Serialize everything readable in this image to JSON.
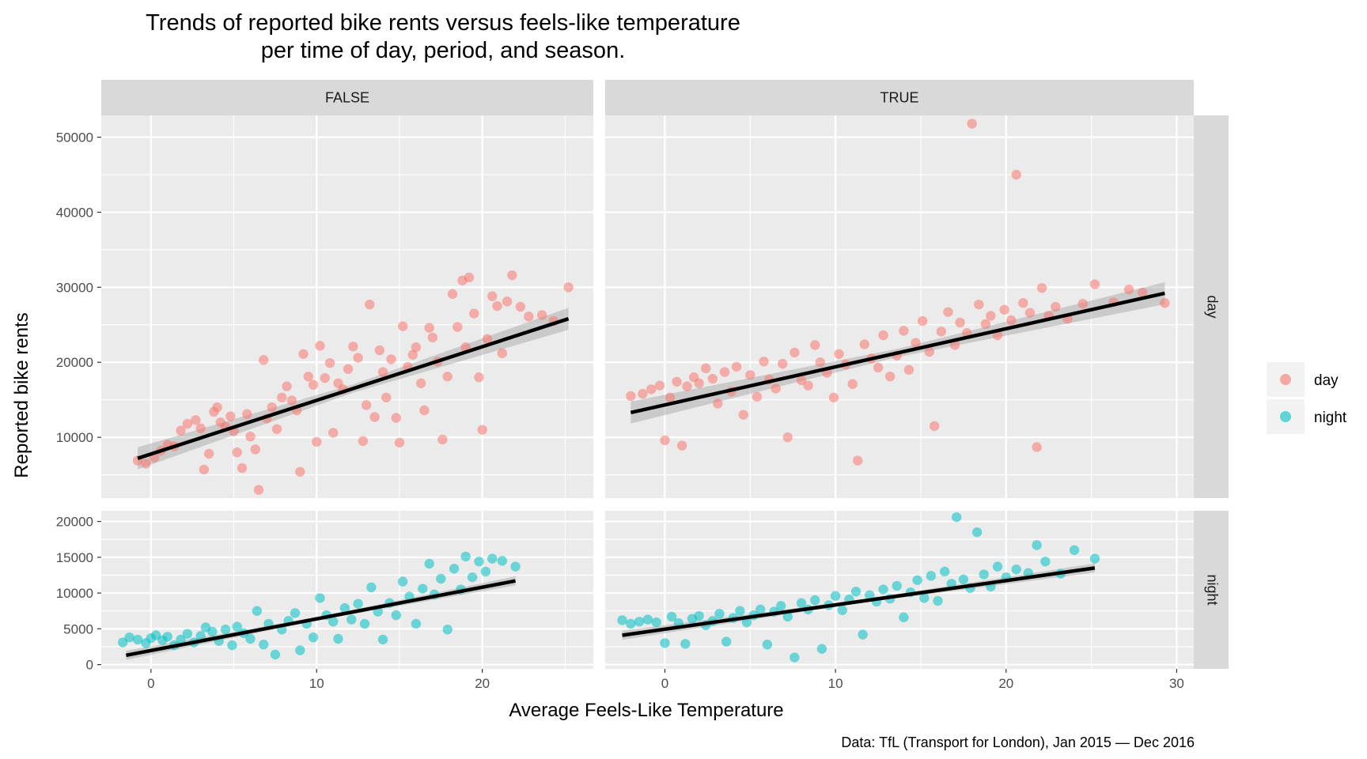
{
  "title": {
    "line1": "Trends of reported bike rents versus feels-like temperature",
    "line2": "per time of day, period, and season."
  },
  "caption": "Data: TfL (Transport for London), Jan 2015 — Dec 2016",
  "colors": {
    "day": "#F8766D",
    "night": "#00BFC4",
    "panel_bg": "#EBEBEB",
    "strip_bg": "#D9D9D9",
    "grid": "#FFFFFF",
    "fit": "#000000"
  },
  "chart_data": {
    "type": "scatter",
    "xlabel": "Average Feels-Like Temperature",
    "ylabel": "Reported bike rents",
    "facet_columns": [
      "FALSE",
      "TRUE"
    ],
    "facet_rows": [
      "day",
      "night"
    ],
    "x_ticks": [
      0,
      10,
      20,
      30
    ],
    "y_ticks_day": [
      10000,
      20000,
      30000,
      40000,
      50000
    ],
    "y_ticks_night": [
      0,
      5000,
      10000,
      15000,
      20000
    ],
    "legend": {
      "position": "right",
      "entries": [
        "day",
        "night"
      ]
    },
    "grid": true,
    "panels": [
      {
        "column": "FALSE",
        "row": "day",
        "xlim": [
          -3,
          26.7
        ],
        "ylim": [
          1900,
          52900
        ],
        "fit": {
          "x": [
            -0.8,
            25.2
          ],
          "y": [
            7200,
            25800
          ]
        },
        "points": [
          [
            -0.8,
            6900
          ],
          [
            -0.3,
            6500
          ],
          [
            0.2,
            7300
          ],
          [
            0.6,
            8200
          ],
          [
            1.0,
            9000
          ],
          [
            1.4,
            8800
          ],
          [
            1.8,
            10900
          ],
          [
            2.2,
            11800
          ],
          [
            2.7,
            12300
          ],
          [
            3.0,
            11200
          ],
          [
            3.2,
            5700
          ],
          [
            3.5,
            7800
          ],
          [
            3.8,
            13400
          ],
          [
            4.0,
            14000
          ],
          [
            4.2,
            12000
          ],
          [
            4.5,
            11400
          ],
          [
            4.8,
            12800
          ],
          [
            5.0,
            10800
          ],
          [
            5.2,
            8000
          ],
          [
            5.5,
            5900
          ],
          [
            5.8,
            13100
          ],
          [
            6.0,
            10100
          ],
          [
            6.3,
            8400
          ],
          [
            6.5,
            3000
          ],
          [
            6.8,
            20300
          ],
          [
            7.0,
            12500
          ],
          [
            7.3,
            14000
          ],
          [
            7.6,
            11100
          ],
          [
            7.9,
            15300
          ],
          [
            8.2,
            16800
          ],
          [
            8.5,
            14900
          ],
          [
            8.8,
            13600
          ],
          [
            9.0,
            5400
          ],
          [
            9.2,
            21100
          ],
          [
            9.5,
            18100
          ],
          [
            9.8,
            17000
          ],
          [
            10.0,
            9400
          ],
          [
            10.2,
            22200
          ],
          [
            10.5,
            17900
          ],
          [
            10.8,
            19900
          ],
          [
            11.0,
            10600
          ],
          [
            11.3,
            17200
          ],
          [
            11.6,
            16400
          ],
          [
            11.9,
            19100
          ],
          [
            12.2,
            22100
          ],
          [
            12.5,
            20600
          ],
          [
            12.8,
            9500
          ],
          [
            13.0,
            14300
          ],
          [
            13.2,
            27700
          ],
          [
            13.5,
            12700
          ],
          [
            13.8,
            21600
          ],
          [
            14.0,
            18700
          ],
          [
            14.2,
            15300
          ],
          [
            14.5,
            20400
          ],
          [
            14.8,
            12600
          ],
          [
            15.0,
            9300
          ],
          [
            15.2,
            24800
          ],
          [
            15.5,
            19400
          ],
          [
            15.8,
            21000
          ],
          [
            16.0,
            22000
          ],
          [
            16.3,
            17200
          ],
          [
            16.5,
            13600
          ],
          [
            16.8,
            24600
          ],
          [
            17.0,
            23300
          ],
          [
            17.3,
            20100
          ],
          [
            17.6,
            9700
          ],
          [
            17.9,
            18100
          ],
          [
            18.2,
            29100
          ],
          [
            18.5,
            24700
          ],
          [
            18.8,
            30900
          ],
          [
            19.0,
            22000
          ],
          [
            19.2,
            31300
          ],
          [
            19.5,
            26500
          ],
          [
            19.8,
            18000
          ],
          [
            20.0,
            11000
          ],
          [
            20.3,
            23100
          ],
          [
            20.6,
            28800
          ],
          [
            20.9,
            27500
          ],
          [
            21.2,
            21200
          ],
          [
            21.5,
            28100
          ],
          [
            21.8,
            31600
          ],
          [
            22.3,
            27400
          ],
          [
            22.8,
            26100
          ],
          [
            23.6,
            26300
          ],
          [
            24.3,
            25500
          ],
          [
            25.2,
            30000
          ]
        ]
      },
      {
        "column": "TRUE",
        "row": "day",
        "xlim": [
          -3.5,
          31
        ],
        "ylim": [
          1900,
          52900
        ],
        "fit": {
          "x": [
            -2.0,
            29.3
          ],
          "y": [
            13300,
            29200
          ]
        },
        "points": [
          [
            -2.0,
            15500
          ],
          [
            -1.3,
            15800
          ],
          [
            -0.8,
            16400
          ],
          [
            -0.3,
            16900
          ],
          [
            0.0,
            9600
          ],
          [
            0.3,
            15300
          ],
          [
            0.7,
            17400
          ],
          [
            1.0,
            8900
          ],
          [
            1.3,
            16800
          ],
          [
            1.7,
            18000
          ],
          [
            2.0,
            17200
          ],
          [
            2.4,
            19200
          ],
          [
            2.8,
            17800
          ],
          [
            3.1,
            14500
          ],
          [
            3.5,
            18700
          ],
          [
            3.9,
            16100
          ],
          [
            4.2,
            19400
          ],
          [
            4.6,
            13000
          ],
          [
            5.0,
            18300
          ],
          [
            5.4,
            15400
          ],
          [
            5.8,
            20100
          ],
          [
            6.1,
            17700
          ],
          [
            6.5,
            16500
          ],
          [
            6.9,
            19800
          ],
          [
            7.2,
            10000
          ],
          [
            7.6,
            21300
          ],
          [
            8.0,
            17600
          ],
          [
            8.4,
            16900
          ],
          [
            8.8,
            22300
          ],
          [
            9.1,
            20000
          ],
          [
            9.5,
            18600
          ],
          [
            9.9,
            15300
          ],
          [
            10.2,
            21100
          ],
          [
            10.6,
            19700
          ],
          [
            11.0,
            17100
          ],
          [
            11.3,
            6900
          ],
          [
            11.7,
            22400
          ],
          [
            12.1,
            20500
          ],
          [
            12.5,
            19300
          ],
          [
            12.8,
            23600
          ],
          [
            13.2,
            18100
          ],
          [
            13.6,
            20900
          ],
          [
            14.0,
            24200
          ],
          [
            14.3,
            19000
          ],
          [
            14.7,
            22600
          ],
          [
            15.1,
            25500
          ],
          [
            15.5,
            21400
          ],
          [
            15.8,
            11500
          ],
          [
            16.2,
            24100
          ],
          [
            16.6,
            26700
          ],
          [
            17.0,
            22300
          ],
          [
            17.3,
            25300
          ],
          [
            17.7,
            23900
          ],
          [
            18.0,
            51800
          ],
          [
            18.4,
            27700
          ],
          [
            18.8,
            25100
          ],
          [
            19.1,
            26200
          ],
          [
            19.5,
            23600
          ],
          [
            19.9,
            27000
          ],
          [
            20.3,
            25600
          ],
          [
            20.6,
            45000
          ],
          [
            21.0,
            27900
          ],
          [
            21.4,
            26600
          ],
          [
            21.8,
            8700
          ],
          [
            22.1,
            29900
          ],
          [
            22.5,
            26200
          ],
          [
            22.9,
            27400
          ],
          [
            23.6,
            25800
          ],
          [
            24.5,
            27800
          ],
          [
            25.2,
            30400
          ],
          [
            26.3,
            28000
          ],
          [
            27.2,
            29700
          ],
          [
            28.0,
            29300
          ],
          [
            29.3,
            27900
          ]
        ]
      },
      {
        "column": "FALSE",
        "row": "night",
        "xlim": [
          -3,
          26.7
        ],
        "ylim": [
          -600,
          21500
        ],
        "fit": {
          "x": [
            -1.5,
            22.0
          ],
          "y": [
            1300,
            11700
          ]
        },
        "points": [
          [
            -1.7,
            3100
          ],
          [
            -1.3,
            3800
          ],
          [
            -0.8,
            3500
          ],
          [
            -0.3,
            3000
          ],
          [
            0.0,
            3700
          ],
          [
            0.3,
            4100
          ],
          [
            0.7,
            3400
          ],
          [
            1.0,
            3900
          ],
          [
            1.4,
            2700
          ],
          [
            1.8,
            3500
          ],
          [
            2.2,
            4300
          ],
          [
            2.6,
            3100
          ],
          [
            3.0,
            4000
          ],
          [
            3.3,
            5200
          ],
          [
            3.7,
            4600
          ],
          [
            4.1,
            3300
          ],
          [
            4.5,
            4900
          ],
          [
            4.9,
            2700
          ],
          [
            5.2,
            5300
          ],
          [
            5.6,
            4400
          ],
          [
            6.0,
            3600
          ],
          [
            6.4,
            7500
          ],
          [
            6.8,
            2800
          ],
          [
            7.1,
            5700
          ],
          [
            7.5,
            1400
          ],
          [
            7.9,
            4900
          ],
          [
            8.3,
            6100
          ],
          [
            8.7,
            7200
          ],
          [
            9.0,
            2000
          ],
          [
            9.4,
            5700
          ],
          [
            9.8,
            3800
          ],
          [
            10.2,
            9300
          ],
          [
            10.6,
            6900
          ],
          [
            11.0,
            6000
          ],
          [
            11.3,
            3600
          ],
          [
            11.7,
            7900
          ],
          [
            12.1,
            6300
          ],
          [
            12.5,
            8500
          ],
          [
            12.9,
            5700
          ],
          [
            13.3,
            10800
          ],
          [
            13.7,
            7400
          ],
          [
            14.0,
            3500
          ],
          [
            14.4,
            8600
          ],
          [
            14.8,
            6900
          ],
          [
            15.2,
            11600
          ],
          [
            15.6,
            9500
          ],
          [
            16.0,
            5700
          ],
          [
            16.4,
            10600
          ],
          [
            16.8,
            14100
          ],
          [
            17.1,
            9800
          ],
          [
            17.5,
            12000
          ],
          [
            17.9,
            4900
          ],
          [
            18.3,
            13400
          ],
          [
            18.7,
            10500
          ],
          [
            19.0,
            15100
          ],
          [
            19.4,
            12200
          ],
          [
            19.8,
            14400
          ],
          [
            20.2,
            13000
          ],
          [
            20.6,
            14800
          ],
          [
            21.2,
            14500
          ],
          [
            22.0,
            13700
          ]
        ]
      },
      {
        "column": "TRUE",
        "row": "night",
        "xlim": [
          -3.5,
          31
        ],
        "ylim": [
          -600,
          21500
        ],
        "fit": {
          "x": [
            -2.5,
            25.2
          ],
          "y": [
            4100,
            13500
          ]
        },
        "points": [
          [
            -2.5,
            6200
          ],
          [
            -2.0,
            5700
          ],
          [
            -1.5,
            6000
          ],
          [
            -1.0,
            6300
          ],
          [
            -0.5,
            5900
          ],
          [
            0.0,
            3000
          ],
          [
            0.4,
            6700
          ],
          [
            0.8,
            5800
          ],
          [
            1.2,
            2900
          ],
          [
            1.6,
            6400
          ],
          [
            2.0,
            6800
          ],
          [
            2.4,
            5500
          ],
          [
            2.8,
            6100
          ],
          [
            3.2,
            7100
          ],
          [
            3.6,
            3200
          ],
          [
            4.0,
            6500
          ],
          [
            4.4,
            7500
          ],
          [
            4.8,
            5900
          ],
          [
            5.2,
            6900
          ],
          [
            5.6,
            7700
          ],
          [
            6.0,
            2800
          ],
          [
            6.4,
            7400
          ],
          [
            6.8,
            8200
          ],
          [
            7.2,
            6700
          ],
          [
            7.6,
            1000
          ],
          [
            8.0,
            8600
          ],
          [
            8.4,
            7700
          ],
          [
            8.8,
            9000
          ],
          [
            9.2,
            2200
          ],
          [
            9.6,
            8300
          ],
          [
            10.0,
            9600
          ],
          [
            10.4,
            7600
          ],
          [
            10.8,
            9100
          ],
          [
            11.2,
            10200
          ],
          [
            11.6,
            4200
          ],
          [
            12.0,
            9700
          ],
          [
            12.4,
            8800
          ],
          [
            12.8,
            10500
          ],
          [
            13.2,
            9200
          ],
          [
            13.6,
            11000
          ],
          [
            14.0,
            6600
          ],
          [
            14.4,
            10100
          ],
          [
            14.8,
            11800
          ],
          [
            15.2,
            9300
          ],
          [
            15.6,
            12400
          ],
          [
            16.0,
            8900
          ],
          [
            16.4,
            13000
          ],
          [
            16.8,
            11300
          ],
          [
            17.1,
            20600
          ],
          [
            17.5,
            11900
          ],
          [
            17.9,
            10700
          ],
          [
            18.3,
            18500
          ],
          [
            18.7,
            12600
          ],
          [
            19.1,
            10900
          ],
          [
            19.5,
            13700
          ],
          [
            20.0,
            12200
          ],
          [
            20.6,
            13300
          ],
          [
            21.3,
            12800
          ],
          [
            21.8,
            16700
          ],
          [
            22.3,
            14400
          ],
          [
            23.2,
            12700
          ],
          [
            24.0,
            16000
          ],
          [
            25.2,
            14800
          ]
        ]
      }
    ]
  }
}
